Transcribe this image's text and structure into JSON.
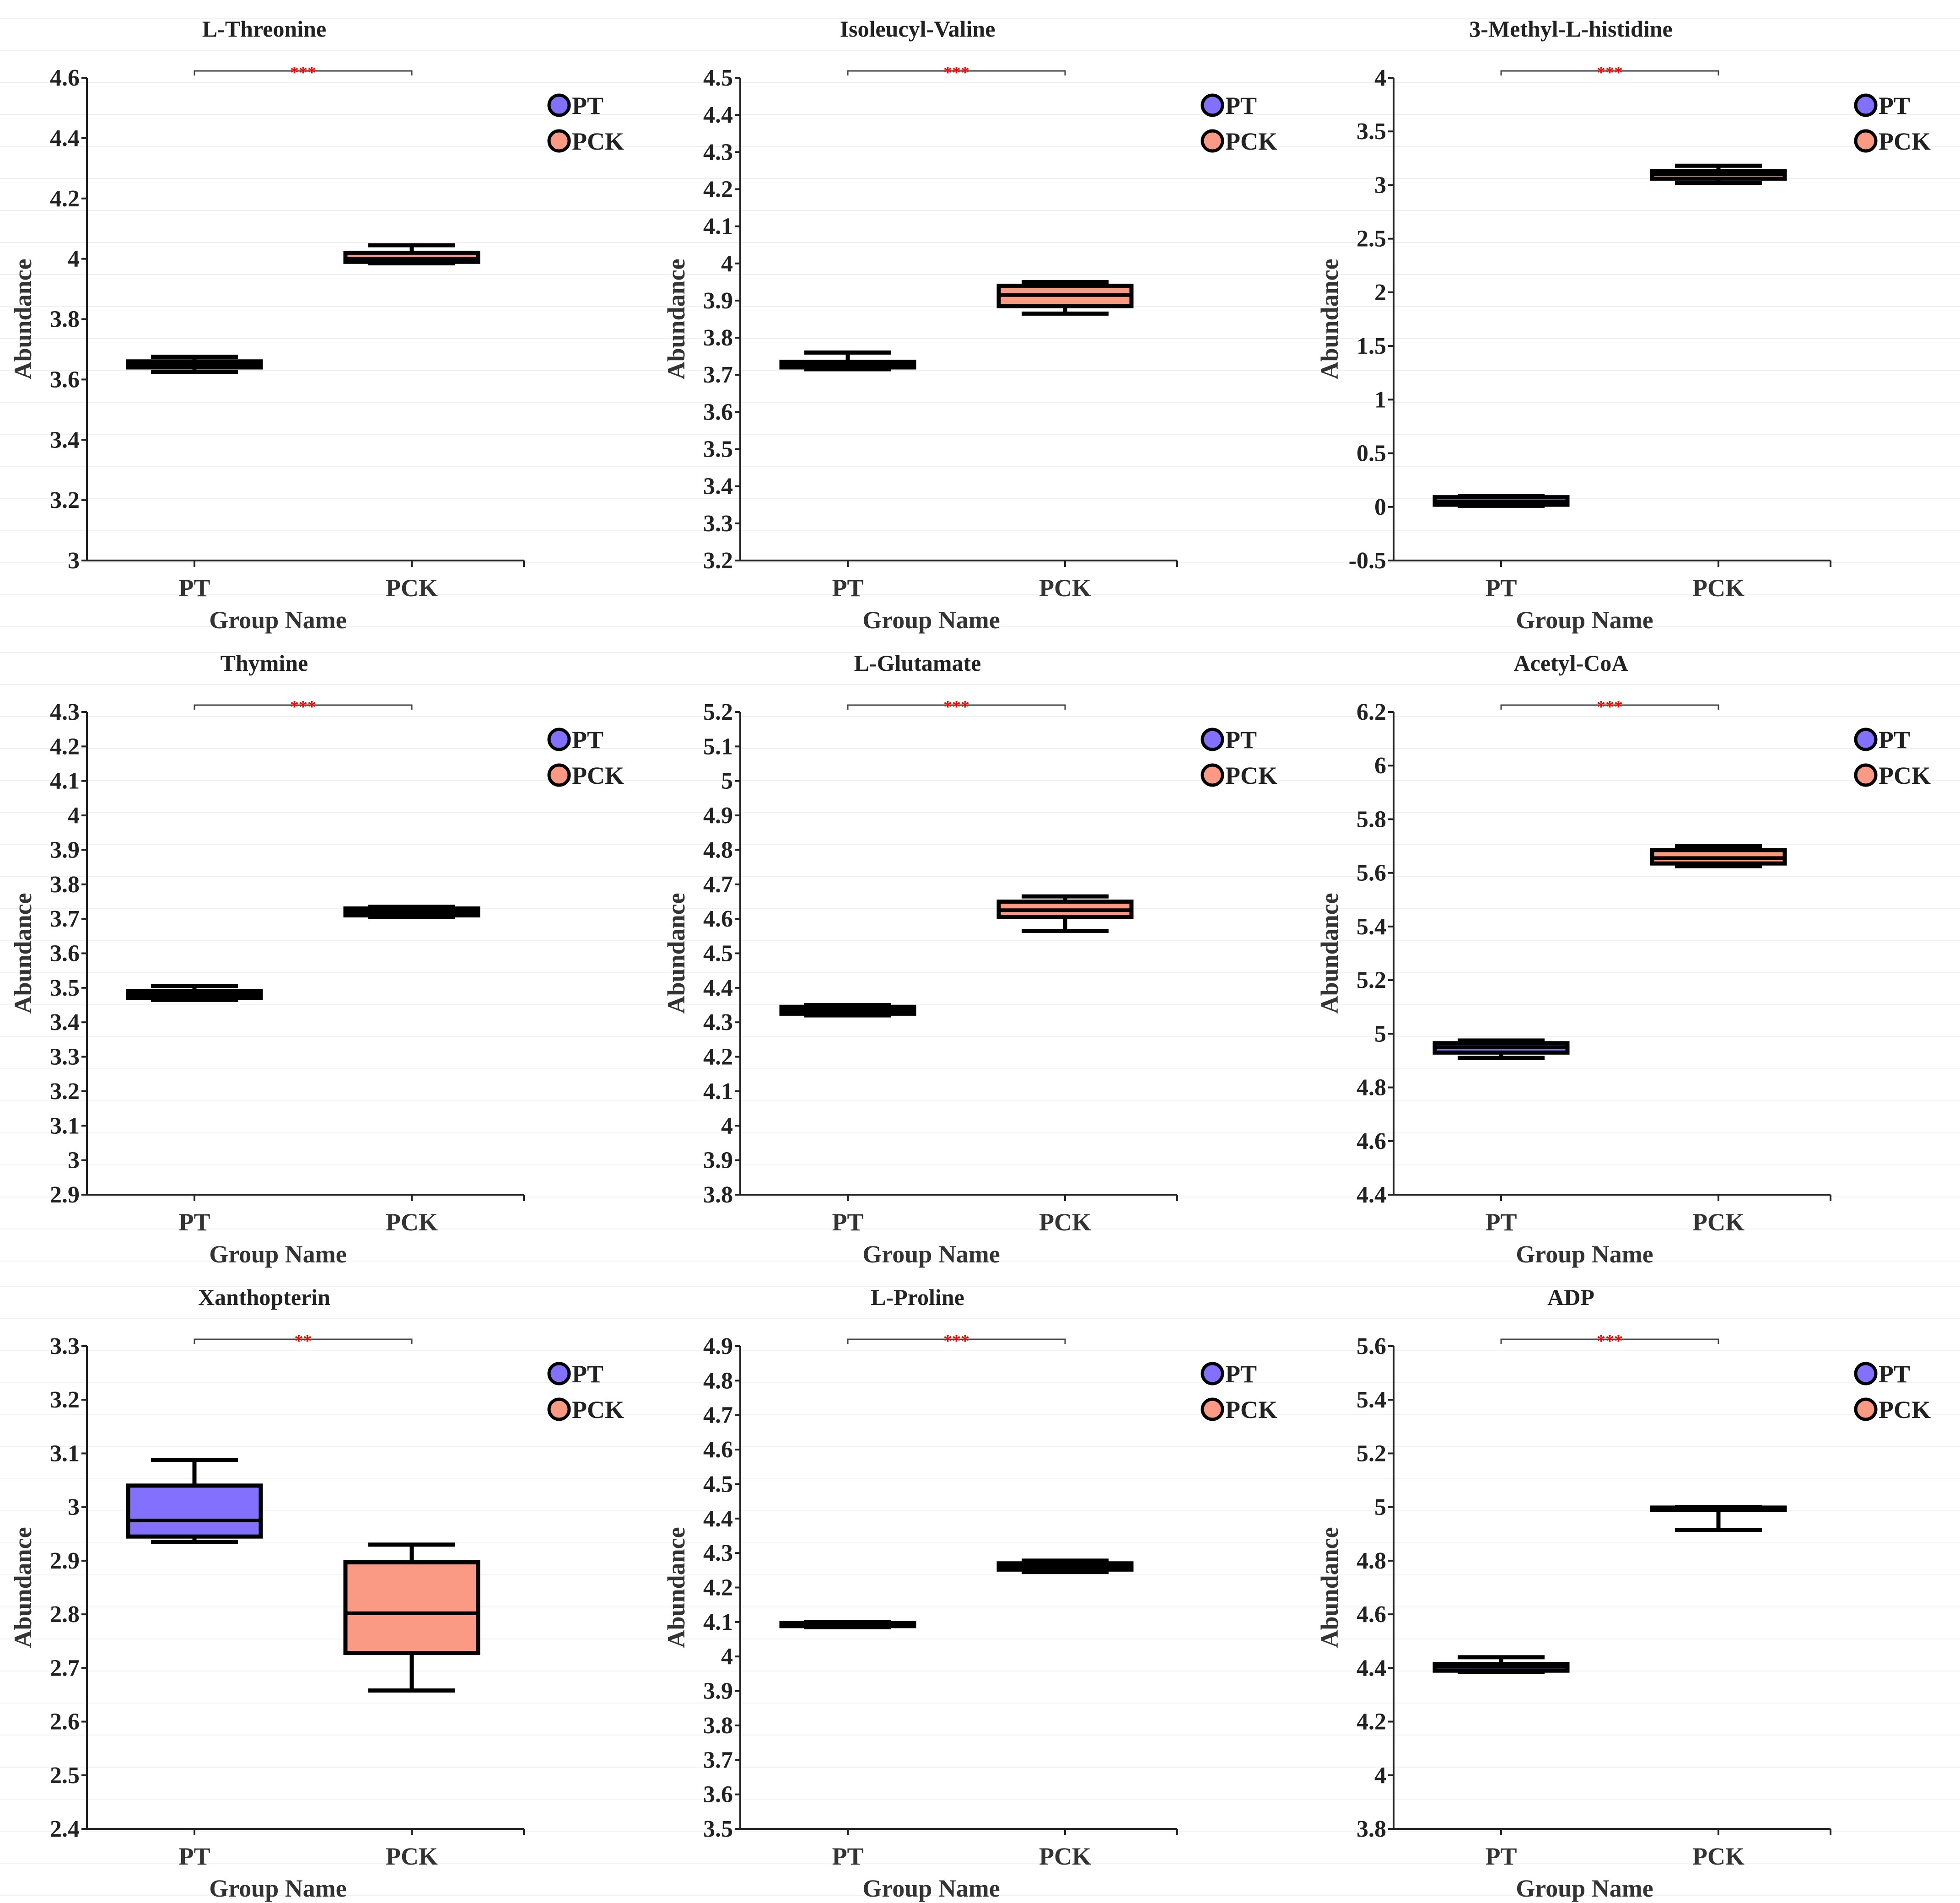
{
  "chart_data": [
    {
      "type": "box",
      "title": "L-Threonine",
      "xlabel": "Group Name",
      "ylabel": "Abundance",
      "categories": [
        "PT",
        "PCK"
      ],
      "ylim": [
        3,
        4.6
      ],
      "ytick_step": 0.2,
      "significance": "***",
      "series": [
        {
          "name": "PT",
          "color": "#8370ff",
          "min": 3.625,
          "q1": 3.64,
          "median": 3.65,
          "q3": 3.66,
          "max": 3.675
        },
        {
          "name": "PCK",
          "color": "#fa9a85",
          "min": 3.985,
          "q1": 3.99,
          "median": 4.0,
          "q3": 4.02,
          "max": 4.045
        }
      ]
    },
    {
      "type": "box",
      "title": "Isoleucyl-Valine",
      "xlabel": "Group Name",
      "ylabel": "Abundance",
      "categories": [
        "PT",
        "PCK"
      ],
      "ylim": [
        3.2,
        4.5
      ],
      "ytick_step": 0.1,
      "significance": "***",
      "series": [
        {
          "name": "PT",
          "color": "#8370ff",
          "min": 3.715,
          "q1": 3.72,
          "median": 3.73,
          "q3": 3.735,
          "max": 3.76
        },
        {
          "name": "PCK",
          "color": "#fa9a85",
          "min": 3.865,
          "q1": 3.885,
          "median": 3.915,
          "q3": 3.94,
          "max": 3.95
        }
      ]
    },
    {
      "type": "box",
      "title": "3-Methyl-L-histidine",
      "xlabel": "Group Name",
      "ylabel": "Abundance",
      "categories": [
        "PT",
        "PCK"
      ],
      "ylim": [
        -0.5,
        4
      ],
      "ytick_step": 0.5,
      "significance": "***",
      "series": [
        {
          "name": "PT",
          "color": "#8370ff",
          "min": 0.01,
          "q1": 0.02,
          "median": 0.05,
          "q3": 0.09,
          "max": 0.1
        },
        {
          "name": "PCK",
          "color": "#fa9a85",
          "min": 3.02,
          "q1": 3.06,
          "median": 3.1,
          "q3": 3.13,
          "max": 3.18
        }
      ]
    },
    {
      "type": "box",
      "title": "Thymine",
      "xlabel": "Group Name",
      "ylabel": "Abundance",
      "categories": [
        "PT",
        "PCK"
      ],
      "ylim": [
        2.9,
        4.3
      ],
      "ytick_step": 0.1,
      "significance": "***",
      "series": [
        {
          "name": "PT",
          "color": "#8370ff",
          "min": 3.465,
          "q1": 3.47,
          "median": 3.48,
          "q3": 3.49,
          "max": 3.505
        },
        {
          "name": "PCK",
          "color": "#fa9a85",
          "min": 3.705,
          "q1": 3.71,
          "median": 3.72,
          "q3": 3.73,
          "max": 3.735
        }
      ]
    },
    {
      "type": "box",
      "title": "L-Glutamate",
      "xlabel": "Group Name",
      "ylabel": "Abundance",
      "categories": [
        "PT",
        "PCK"
      ],
      "ylim": [
        3.8,
        5.2
      ],
      "ytick_step": 0.1,
      "significance": "***",
      "series": [
        {
          "name": "PT",
          "color": "#8370ff",
          "min": 4.32,
          "q1": 4.325,
          "median": 4.335,
          "q3": 4.345,
          "max": 4.35
        },
        {
          "name": "PCK",
          "color": "#fa9a85",
          "min": 4.565,
          "q1": 4.605,
          "median": 4.625,
          "q3": 4.65,
          "max": 4.665
        }
      ]
    },
    {
      "type": "box",
      "title": "Acetyl-CoA",
      "xlabel": "Group Name",
      "ylabel": "Abundance",
      "categories": [
        "PT",
        "PCK"
      ],
      "ylim": [
        4.4,
        6.2
      ],
      "ytick_step": 0.2,
      "significance": "***",
      "series": [
        {
          "name": "PT",
          "color": "#8370ff",
          "min": 4.91,
          "q1": 4.93,
          "median": 4.95,
          "q3": 4.965,
          "max": 4.975
        },
        {
          "name": "PCK",
          "color": "#fa9a85",
          "min": 5.625,
          "q1": 5.635,
          "median": 5.655,
          "q3": 5.685,
          "max": 5.7
        }
      ]
    },
    {
      "type": "box",
      "title": "Xanthopterin",
      "xlabel": "Group Name",
      "ylabel": "Abundance",
      "categories": [
        "PT",
        "PCK"
      ],
      "ylim": [
        2.4,
        3.3
      ],
      "ytick_step": 0.1,
      "significance": "**",
      "series": [
        {
          "name": "PT",
          "color": "#8370ff",
          "min": 2.935,
          "q1": 2.945,
          "median": 2.975,
          "q3": 3.04,
          "max": 3.088
        },
        {
          "name": "PCK",
          "color": "#fa9a85",
          "min": 2.658,
          "q1": 2.728,
          "median": 2.802,
          "q3": 2.897,
          "max": 2.93
        }
      ]
    },
    {
      "type": "box",
      "title": "L-Proline",
      "xlabel": "Group Name",
      "ylabel": "Abundance",
      "categories": [
        "PT",
        "PCK"
      ],
      "ylim": [
        3.5,
        4.9
      ],
      "ytick_step": 0.1,
      "significance": "***",
      "series": [
        {
          "name": "PT",
          "color": "#8370ff",
          "min": 4.085,
          "q1": 4.088,
          "median": 4.092,
          "q3": 4.097,
          "max": 4.1
        },
        {
          "name": "PCK",
          "color": "#fa9a85",
          "min": 4.245,
          "q1": 4.252,
          "median": 4.262,
          "q3": 4.27,
          "max": 4.278
        }
      ]
    },
    {
      "type": "box",
      "title": "ADP",
      "xlabel": "Group Name",
      "ylabel": "Abundance",
      "categories": [
        "PT",
        "PCK"
      ],
      "ylim": [
        3.8,
        5.6
      ],
      "ytick_step": 0.2,
      "significance": "***",
      "series": [
        {
          "name": "PT",
          "color": "#8370ff",
          "min": 4.385,
          "q1": 4.39,
          "median": 4.405,
          "q3": 4.415,
          "max": 4.44
        },
        {
          "name": "PCK",
          "color": "#fa9a85",
          "min": 4.915,
          "q1": 4.99,
          "median": 4.995,
          "q3": 4.998,
          "max": 5.0
        }
      ]
    }
  ]
}
